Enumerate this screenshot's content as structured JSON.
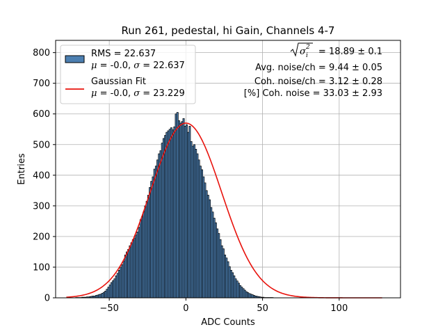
{
  "chart_data": {
    "type": "bar",
    "title": "Run 261, pedestal, hi Gain, Channels 4-7",
    "xlabel": "ADC Counts",
    "ylabel": "Entries",
    "xlim": [
      -85,
      140
    ],
    "ylim": [
      0,
      840
    ],
    "xticks": [
      -50,
      0,
      50,
      100
    ],
    "yticks": [
      0,
      100,
      200,
      300,
      400,
      500,
      600,
      700,
      800
    ],
    "grid": true,
    "histogram": {
      "bin_start": -72,
      "bin_width": 1,
      "values": [
        1,
        1,
        1,
        1,
        2,
        2,
        2,
        3,
        3,
        4,
        5,
        6,
        6,
        8,
        9,
        11,
        12,
        15,
        18,
        22,
        28,
        35,
        42,
        50,
        56,
        62,
        72,
        80,
        90,
        100,
        108,
        120,
        140,
        150,
        158,
        170,
        180,
        190,
        195,
        205,
        215,
        230,
        255,
        265,
        280,
        300,
        315,
        335,
        360,
        380,
        395,
        420,
        430,
        450,
        470,
        480,
        505,
        520,
        530,
        540,
        545,
        550,
        555,
        548,
        558,
        600,
        605,
        578,
        570,
        575,
        585,
        560,
        565,
        540,
        560,
        510,
        495,
        500,
        485,
        470,
        450,
        430,
        418,
        395,
        375,
        350,
        335,
        320,
        295,
        280,
        260,
        245,
        225,
        210,
        190,
        170,
        160,
        140,
        130,
        118,
        102,
        90,
        82,
        72,
        62,
        55,
        48,
        40,
        35,
        30,
        25,
        20,
        17,
        14,
        12,
        10,
        8,
        6,
        5,
        4,
        3,
        2,
        2,
        1,
        1,
        1,
        1,
        1,
        1
      ]
    },
    "series": [
      {
        "name": "RMS",
        "kind": "histogram",
        "legend_lines": [
          "RMS = 22.637",
          "$\\mu$ = -0.0, $\\sigma$ = 22.637"
        ],
        "color": "#4c7fb1",
        "edge_color": "#000000"
      },
      {
        "name": "Gaussian Fit",
        "kind": "curve",
        "legend_lines": [
          "Gaussian Fit",
          "$\\mu$ = -0.0, $\\sigma$ = 23.229"
        ],
        "mu": 0.0,
        "sigma": 23.229,
        "amplitude": 570,
        "x_range": [
          -78,
          128
        ],
        "color": "#e8120c"
      }
    ],
    "legend": {
      "placement": "top-left"
    },
    "annotations": [
      {
        "text": "$\\sqrt{\\sigma_i^2}$ = 18.89 ± 0.1",
        "placement": "top-right"
      },
      {
        "text": "Avg. noise/ch = 9.44 ± 0.05",
        "placement": "top-right"
      },
      {
        "text": "Coh. noise/ch = 3.12 ± 0.28",
        "placement": "top-right"
      },
      {
        "text": "[%] Coh. noise = 33.03 ± 2.93",
        "placement": "top-right"
      }
    ]
  },
  "legend": {
    "rms_line1": "RMS = 22.637",
    "rms_mu": "μ",
    "rms_mid": " = -0.0, ",
    "rms_sigma": "σ",
    "rms_tail": " = 22.637",
    "fit_line1": "Gaussian Fit",
    "fit_mu": "μ",
    "fit_mid": " = -0.0, ",
    "fit_sigma": "σ",
    "fit_tail": " = 23.229"
  },
  "stats": {
    "line1_value": " = 18.89 ± 0.1",
    "line2": "Avg. noise/ch = 9.44 ± 0.05",
    "line3": "Coh. noise/ch = 3.12 ± 0.28",
    "line4": "[%] Coh. noise = 33.03 ± 2.93"
  }
}
